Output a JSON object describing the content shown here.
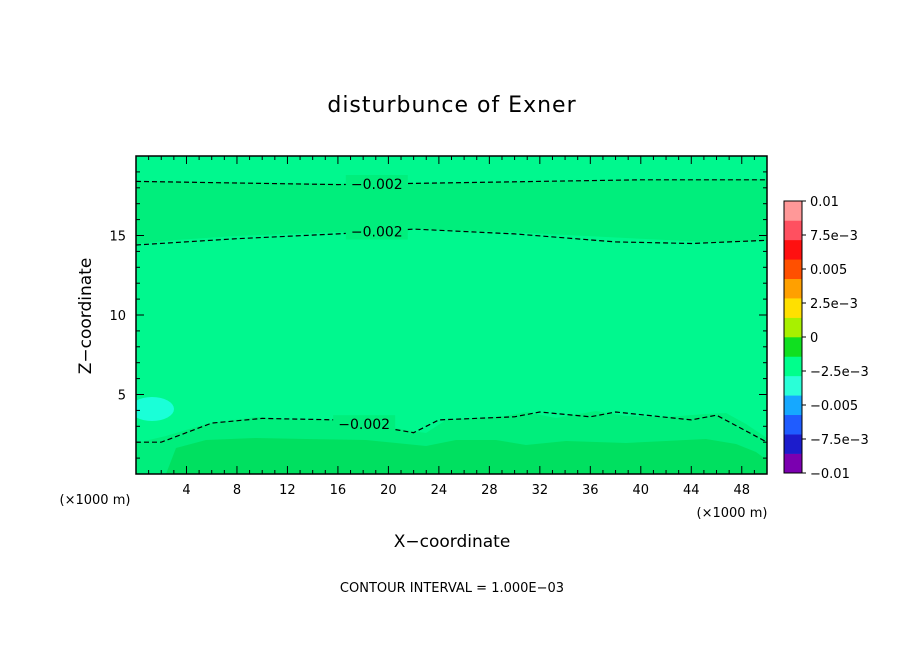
{
  "chart_data": {
    "type": "filled-contour",
    "title": "disturbunce of Exner",
    "xlabel": "X−coordinate",
    "ylabel": "Z−coordinate",
    "x_unit_left": "(×1000 m)",
    "x_unit_right": "(×1000 m)",
    "xlim": [
      0,
      50
    ],
    "ylim": [
      0,
      20
    ],
    "x_ticks": [
      "4",
      "8",
      "12",
      "16",
      "20",
      "24",
      "28",
      "32",
      "36",
      "40",
      "44",
      "48"
    ],
    "y_ticks": [
      "5",
      "10",
      "15"
    ],
    "colorbar": {
      "levels": [
        -0.01,
        -0.0075,
        -0.005,
        -0.0025,
        0,
        0.0025,
        0.005,
        0.0075,
        0.01
      ],
      "labels": [
        "0.01",
        "7.5e−3",
        "0.005",
        "2.5e−3",
        "0",
        "−2.5e−3",
        "−0.005",
        "−7.5e−3",
        "−0.01"
      ],
      "colors": [
        "#7b00b0",
        "#1c1ccc",
        "#1f5cff",
        "#16a8ff",
        "#2affd8",
        "#00ff8c",
        "#10e020",
        "#a8f000",
        "#ffe000",
        "#ffa000",
        "#ff5000",
        "#ff1010",
        "#ff5060",
        "#ff9898"
      ]
    },
    "contours": [
      {
        "label": "−0.002",
        "x": [
          0,
          8,
          16,
          24,
          32,
          40,
          50
        ],
        "z": [
          18.4,
          18.3,
          18.2,
          18.3,
          18.4,
          18.5,
          18.5
        ]
      },
      {
        "label": "−0.002",
        "x": [
          0,
          8,
          16,
          22,
          30,
          38,
          44,
          50
        ],
        "z": [
          14.4,
          14.8,
          15.1,
          15.4,
          15.1,
          14.6,
          14.5,
          14.7
        ]
      },
      {
        "label": "−0.002",
        "x": [
          0,
          2,
          6,
          10,
          16,
          22,
          24,
          30,
          32,
          36,
          38,
          44,
          46,
          50
        ],
        "z": [
          2.0,
          2.0,
          3.2,
          3.5,
          3.4,
          2.6,
          3.4,
          3.6,
          3.9,
          3.6,
          3.9,
          3.4,
          3.7,
          2.0
        ]
      }
    ],
    "annotation": "CONTOUR INTERVAL = 1.000E−03"
  }
}
